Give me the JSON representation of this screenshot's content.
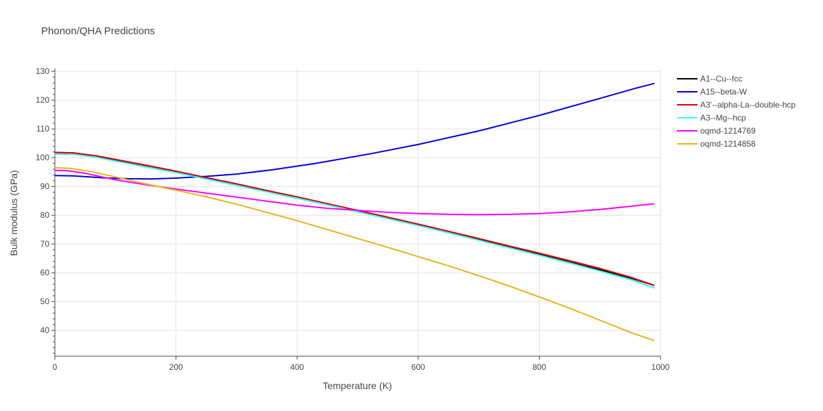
{
  "chart_data": {
    "type": "line",
    "title": "Phonon/QHA Predictions",
    "xlabel": "Temperature (K)",
    "ylabel": "Bulk modulus (GPa)",
    "xlim": [
      0,
      1000
    ],
    "ylim": [
      31,
      131
    ],
    "xticks": [
      0,
      200,
      400,
      600,
      800,
      1000
    ],
    "yticks": [
      40,
      50,
      60,
      70,
      80,
      90,
      100,
      110,
      120,
      130
    ],
    "grid": true,
    "legend_position": "top-right",
    "series": [
      {
        "name": "A1--Cu--fcc",
        "color": "#000000",
        "x": [
          0,
          30,
          70,
          100,
          150,
          200,
          250,
          300,
          350,
          400,
          450,
          500,
          550,
          600,
          650,
          700,
          750,
          800,
          850,
          900,
          950,
          990
        ],
        "y": [
          101.8,
          101.7,
          100.5,
          99.3,
          97.3,
          95.2,
          93.0,
          90.8,
          88.5,
          86.3,
          83.9,
          81.6,
          79.1,
          76.7,
          74.1,
          71.6,
          69.0,
          66.4,
          63.7,
          61.0,
          58.2,
          55.6
        ]
      },
      {
        "name": "A15--beta-W",
        "color": "#0000dd",
        "x": [
          0,
          30,
          80,
          120,
          160,
          200,
          250,
          300,
          360,
          430,
          520,
          600,
          700,
          800,
          900,
          960,
          990
        ],
        "y": [
          93.8,
          93.7,
          93.0,
          92.7,
          92.6,
          92.9,
          93.5,
          94.3,
          95.8,
          98.0,
          101.3,
          104.6,
          109.3,
          114.7,
          120.6,
          124.2,
          125.8
        ]
      },
      {
        "name": "A3'--alpha-La--double-hcp",
        "color": "#dd0000",
        "x": [
          0,
          30,
          70,
          100,
          150,
          200,
          250,
          300,
          350,
          400,
          450,
          500,
          550,
          600,
          650,
          700,
          750,
          800,
          850,
          900,
          950,
          990
        ],
        "y": [
          101.8,
          101.7,
          100.6,
          99.4,
          97.4,
          95.3,
          93.1,
          90.9,
          88.6,
          86.4,
          84.0,
          81.7,
          79.3,
          76.9,
          74.4,
          71.9,
          69.3,
          66.8,
          64.2,
          61.5,
          58.5,
          55.6
        ]
      },
      {
        "name": "A3--Mg--hcp",
        "color": "#33ffff",
        "x": [
          0,
          30,
          70,
          100,
          150,
          200,
          250,
          300,
          350,
          400,
          450,
          500,
          550,
          600,
          650,
          700,
          750,
          800,
          850,
          900,
          950,
          990
        ],
        "y": [
          101.3,
          101.2,
          100.1,
          98.8,
          96.8,
          94.8,
          92.6,
          90.4,
          88.1,
          85.9,
          83.6,
          81.2,
          78.8,
          76.4,
          73.9,
          71.3,
          68.7,
          66.1,
          63.4,
          60.6,
          57.7,
          54.7
        ]
      },
      {
        "name": "oqmd-1214769",
        "color": "#ff00ff",
        "x": [
          0,
          20,
          50,
          100,
          150,
          200,
          250,
          300,
          350,
          400,
          450,
          500,
          550,
          600,
          650,
          700,
          750,
          800,
          850,
          900,
          950,
          990
        ],
        "y": [
          95.6,
          95.5,
          94.6,
          92.3,
          90.6,
          89.1,
          87.7,
          86.3,
          84.9,
          83.5,
          82.4,
          81.7,
          81.0,
          80.6,
          80.3,
          80.2,
          80.3,
          80.6,
          81.2,
          82.0,
          83.1,
          84.0
        ]
      },
      {
        "name": "oqmd-1214858",
        "color": "#e6b31a",
        "x": [
          0,
          25,
          60,
          100,
          150,
          200,
          250,
          300,
          350,
          400,
          450,
          500,
          550,
          600,
          650,
          700,
          750,
          800,
          850,
          900,
          950,
          990
        ],
        "y": [
          96.5,
          96.3,
          95.2,
          93.3,
          90.9,
          88.7,
          86.4,
          83.8,
          81.0,
          78.1,
          75.0,
          71.9,
          68.8,
          65.6,
          62.4,
          59.0,
          55.4,
          51.6,
          47.7,
          43.5,
          39.3,
          36.4
        ]
      }
    ]
  }
}
